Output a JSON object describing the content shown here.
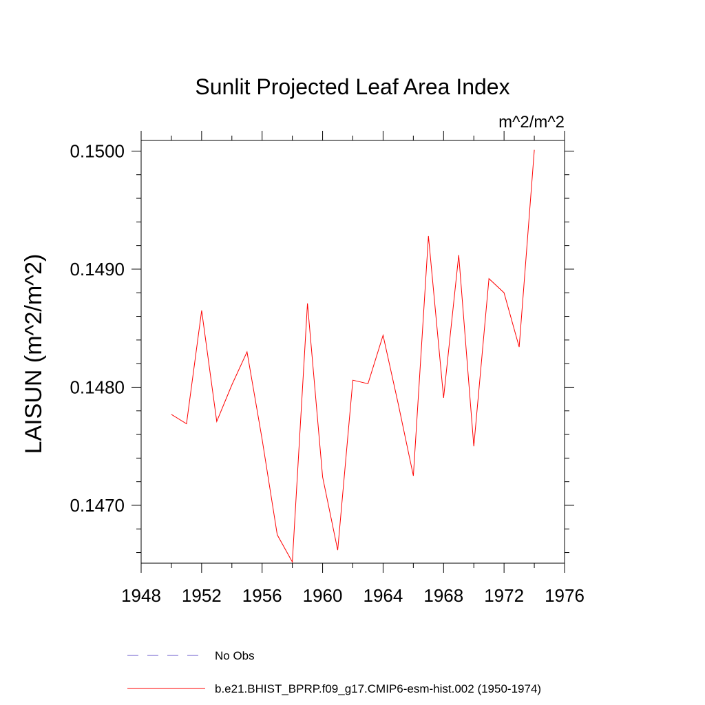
{
  "chart_data": {
    "type": "line",
    "title": "Sunlit Projected Leaf Area Index",
    "units_label": "m^2/m^2",
    "ylabel": "LAISUN  (m^2/m^2)",
    "xlabel": "",
    "xlim": [
      1948,
      1976
    ],
    "ylim": [
      0.14651,
      0.15009
    ],
    "x_ticks": [
      1948,
      1952,
      1956,
      1960,
      1964,
      1968,
      1972,
      1976
    ],
    "x_tick_labels": [
      "1948",
      "1952",
      "1956",
      "1960",
      "1964",
      "1968",
      "1972",
      "1976"
    ],
    "y_ticks": [
      0.147,
      0.148,
      0.149,
      0.15
    ],
    "y_tick_labels": [
      "0.1470",
      "0.1480",
      "0.1490",
      "0.1500"
    ],
    "y_minor_step": 0.0002,
    "x_minor_step": 2,
    "grid": false,
    "legend_position": "bottom",
    "series": [
      {
        "name": "b.e21.BHIST_BPRP.f09_g17.CMIP6-esm-hist.002 (1950-1974)",
        "color": "#ff0000",
        "dash": "solid",
        "x": [
          1950,
          1951,
          1952,
          1953,
          1954,
          1955,
          1956,
          1957,
          1958,
          1959,
          1960,
          1961,
          1962,
          1963,
          1964,
          1965,
          1966,
          1967,
          1968,
          1969,
          1970,
          1971,
          1972,
          1973,
          1974
        ],
        "values": [
          0.14777,
          0.14769,
          0.14865,
          0.14771,
          0.14802,
          0.1483,
          0.14756,
          0.14675,
          0.14652,
          0.14871,
          0.14724,
          0.14662,
          0.14806,
          0.14803,
          0.14844,
          0.14786,
          0.14725,
          0.14928,
          0.14791,
          0.14912,
          0.1475,
          0.14892,
          0.1488,
          0.14834,
          0.15001
        ]
      }
    ],
    "legend": [
      {
        "label": "No Obs",
        "color": "#6a5acd",
        "dash": "dashed"
      },
      {
        "label": "b.e21.BHIST_BPRP.f09_g17.CMIP6-esm-hist.002 (1950-1974)",
        "color": "#ff0000",
        "dash": "solid"
      }
    ]
  }
}
